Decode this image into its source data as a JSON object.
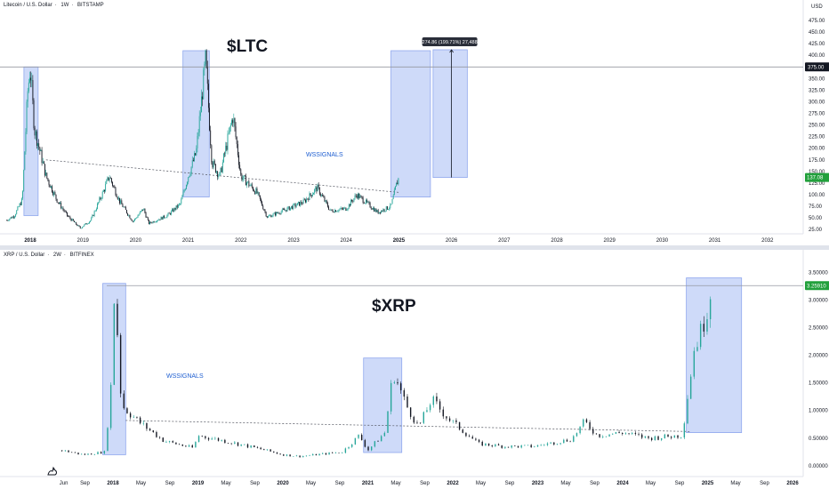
{
  "colors": {
    "up": "#26a69a",
    "down": "#131722",
    "box_fill": "#c5d4f8",
    "box_stroke": "#8fa7ee",
    "price_tag": "#131722",
    "price_tag_green": "#22a03c",
    "annotation_text": "#1f5fd1",
    "grid": "#f0f3fa"
  },
  "charts": {
    "ltc": {
      "header": [
        "Litecoin / U.S. Dollar",
        "1W",
        "BITSTAMP"
      ],
      "title_overlay": "$LTC",
      "watermark": "WSSIGNALS",
      "unit": "USD",
      "measure_label": "274.86 (199.71%) 27,488",
      "last_price_label": "137.08",
      "level_label": "375.00"
    },
    "xrp": {
      "header": [
        "XRP / U.S. Dollar",
        "2W",
        "BITFINEX"
      ],
      "title_overlay": "$XRP",
      "watermark": "WSSIGNALS",
      "last_price_label": "3.25910"
    }
  },
  "chart_data": [
    {
      "type": "candlestick",
      "title": "Litecoin / U.S. Dollar, 1W, BITSTAMP",
      "y_axis": {
        "unit": "USD",
        "ticks": [
          25,
          50,
          75,
          100,
          125,
          150,
          175,
          200,
          225,
          250,
          275,
          300,
          325,
          350,
          375,
          400,
          425,
          450,
          475
        ],
        "range": [
          10,
          500
        ]
      },
      "x_axis": {
        "ticks": [
          "2018",
          "2019",
          "2020",
          "2021",
          "2022",
          "2023",
          "2024",
          "2025",
          "2026",
          "2027",
          "2028",
          "2029",
          "2030",
          "2031",
          "2032"
        ]
      },
      "series_points": [
        {
          "t": 2017.55,
          "v": 45
        },
        {
          "t": 2017.7,
          "v": 55
        },
        {
          "t": 2017.85,
          "v": 90
        },
        {
          "t": 2017.95,
          "v": 320
        },
        {
          "t": 2018.0,
          "v": 375
        },
        {
          "t": 2018.08,
          "v": 240
        },
        {
          "t": 2018.15,
          "v": 210
        },
        {
          "t": 2018.3,
          "v": 140
        },
        {
          "t": 2018.5,
          "v": 90
        },
        {
          "t": 2018.7,
          "v": 55
        },
        {
          "t": 2018.95,
          "v": 28
        },
        {
          "t": 2019.15,
          "v": 45
        },
        {
          "t": 2019.4,
          "v": 110
        },
        {
          "t": 2019.5,
          "v": 140
        },
        {
          "t": 2019.7,
          "v": 85
        },
        {
          "t": 2019.95,
          "v": 42
        },
        {
          "t": 2020.15,
          "v": 70
        },
        {
          "t": 2020.25,
          "v": 38
        },
        {
          "t": 2020.6,
          "v": 55
        },
        {
          "t": 2020.85,
          "v": 80
        },
        {
          "t": 2021.0,
          "v": 140
        },
        {
          "t": 2021.15,
          "v": 190
        },
        {
          "t": 2021.33,
          "v": 390
        },
        {
          "t": 2021.45,
          "v": 170
        },
        {
          "t": 2021.6,
          "v": 140
        },
        {
          "t": 2021.85,
          "v": 270
        },
        {
          "t": 2022.0,
          "v": 140
        },
        {
          "t": 2022.3,
          "v": 105
        },
        {
          "t": 2022.5,
          "v": 52
        },
        {
          "t": 2022.9,
          "v": 70
        },
        {
          "t": 2023.2,
          "v": 85
        },
        {
          "t": 2023.45,
          "v": 115
        },
        {
          "t": 2023.7,
          "v": 65
        },
        {
          "t": 2024.0,
          "v": 70
        },
        {
          "t": 2024.2,
          "v": 100
        },
        {
          "t": 2024.6,
          "v": 62
        },
        {
          "t": 2024.85,
          "v": 75
        },
        {
          "t": 2024.95,
          "v": 120
        },
        {
          "t": 2025.0,
          "v": 137
        }
      ],
      "level_line": 375,
      "trendline": [
        {
          "t": 2018.3,
          "v": 175
        },
        {
          "t": 2025.0,
          "v": 105
        }
      ],
      "highlight_boxes": [
        {
          "t0": 2017.88,
          "t1": 2018.15,
          "v0": 55,
          "v1": 375
        },
        {
          "t0": 2020.9,
          "t1": 2021.4,
          "v0": 95,
          "v1": 410
        },
        {
          "t0": 2024.85,
          "t1": 2025.6,
          "v0": 95,
          "v1": 410
        },
        {
          "t0": 2025.65,
          "t1": 2026.3,
          "v0": 137,
          "v1": 412
        }
      ],
      "measure": {
        "t": 2026.0,
        "v0": 137,
        "v1": 412,
        "label": "274.86 (199.71%) 27,488"
      },
      "last_price": 137.08
    },
    {
      "type": "candlestick",
      "title": "XRP / U.S. Dollar, 2W, BITFINEX",
      "y_axis": {
        "ticks": [
          0.0,
          0.5,
          1.0,
          1.5,
          2.0,
          2.5,
          3.0,
          3.5
        ],
        "range": [
          -0.05,
          3.65
        ]
      },
      "x_axis": {
        "ticks": [
          "Jun",
          "Sep",
          "2018",
          "May",
          "Sep",
          "2019",
          "May",
          "Sep",
          "2020",
          "May",
          "Sep",
          "2021",
          "May",
          "Sep",
          "2022",
          "May",
          "Sep",
          "2023",
          "May",
          "Sep",
          "2024",
          "May",
          "Sep",
          "2025",
          "May",
          "Sep",
          "2026"
        ]
      },
      "series_points": [
        {
          "t": 2017.4,
          "v": 0.28
        },
        {
          "t": 2017.65,
          "v": 0.2
        },
        {
          "t": 2017.9,
          "v": 0.25
        },
        {
          "t": 2017.97,
          "v": 1.2
        },
        {
          "t": 2018.02,
          "v": 3.3
        },
        {
          "t": 2018.1,
          "v": 1.1
        },
        {
          "t": 2018.3,
          "v": 0.8
        },
        {
          "t": 2018.6,
          "v": 0.45
        },
        {
          "t": 2018.95,
          "v": 0.32
        },
        {
          "t": 2019.0,
          "v": 0.55
        },
        {
          "t": 2019.4,
          "v": 0.42
        },
        {
          "t": 2019.8,
          "v": 0.28
        },
        {
          "t": 2020.0,
          "v": 0.2
        },
        {
          "t": 2020.2,
          "v": 0.17
        },
        {
          "t": 2020.7,
          "v": 0.25
        },
        {
          "t": 2020.9,
          "v": 0.55
        },
        {
          "t": 2021.0,
          "v": 0.28
        },
        {
          "t": 2021.2,
          "v": 0.6
        },
        {
          "t": 2021.3,
          "v": 1.7
        },
        {
          "t": 2021.45,
          "v": 1.1
        },
        {
          "t": 2021.6,
          "v": 0.7
        },
        {
          "t": 2021.75,
          "v": 1.2
        },
        {
          "t": 2021.95,
          "v": 0.85
        },
        {
          "t": 2022.3,
          "v": 0.4
        },
        {
          "t": 2022.6,
          "v": 0.35
        },
        {
          "t": 2022.95,
          "v": 0.35
        },
        {
          "t": 2023.4,
          "v": 0.48
        },
        {
          "t": 2023.55,
          "v": 0.8
        },
        {
          "t": 2023.7,
          "v": 0.55
        },
        {
          "t": 2024.0,
          "v": 0.6
        },
        {
          "t": 2024.3,
          "v": 0.5
        },
        {
          "t": 2024.7,
          "v": 0.55
        },
        {
          "t": 2024.85,
          "v": 2.2
        },
        {
          "t": 2024.92,
          "v": 2.4
        },
        {
          "t": 2025.05,
          "v": 3.26
        }
      ],
      "trendline": [
        {
          "t": 2018.15,
          "v": 0.82
        },
        {
          "t": 2024.8,
          "v": 0.62
        }
      ],
      "level_line": 3.26,
      "highlight_boxes": [
        {
          "t0": 2017.88,
          "t1": 2018.15,
          "v0": 0.2,
          "v1": 3.3
        },
        {
          "t0": 2020.95,
          "t1": 2021.4,
          "v0": 0.24,
          "v1": 1.95
        },
        {
          "t0": 2024.75,
          "t1": 2025.4,
          "v0": 0.6,
          "v1": 3.4
        }
      ],
      "last_price": 3.2591
    }
  ]
}
